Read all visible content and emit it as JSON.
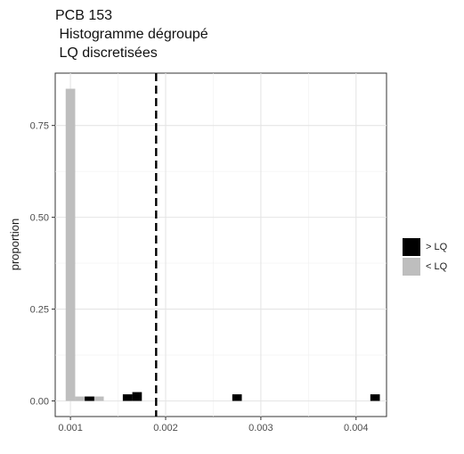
{
  "chart_data": {
    "type": "bar",
    "title_lines": [
      "PCB 153",
      " Histogramme dégroupé",
      " LQ discretisées"
    ],
    "ylabel": "proportion",
    "xlabel": "",
    "xlim": [
      0.00084,
      0.00432
    ],
    "ylim": [
      -0.0425,
      0.8925
    ],
    "x_ticks": [
      0.001,
      0.002,
      0.003,
      0.004
    ],
    "x_tick_labels": [
      "0.001",
      "0.002",
      "0.003",
      "0.004"
    ],
    "y_ticks": [
      0.0,
      0.25,
      0.5,
      0.75
    ],
    "y_tick_labels": [
      "0.00",
      "0.25",
      "0.50",
      "0.75"
    ],
    "grid": true,
    "bin_width": 0.0001,
    "reference_line": {
      "x": 0.0019,
      "style": "dashed"
    },
    "legend_position": "right",
    "series": [
      {
        "name": "> LQ",
        "color": "#000000",
        "bars": [
          {
            "x": 0.0012,
            "value": 0.012
          },
          {
            "x": 0.0016,
            "value": 0.018
          },
          {
            "x": 0.0017,
            "value": 0.024
          },
          {
            "x": 0.00275,
            "value": 0.018
          },
          {
            "x": 0.0042,
            "value": 0.018
          }
        ]
      },
      {
        "name": "< LQ",
        "color": "#bebebe",
        "bars": [
          {
            "x": 0.001,
            "value": 0.85
          },
          {
            "x": 0.0011,
            "value": 0.012
          },
          {
            "x": 0.0012,
            "value": 0.012
          },
          {
            "x": 0.0013,
            "value": 0.012
          }
        ]
      }
    ]
  }
}
